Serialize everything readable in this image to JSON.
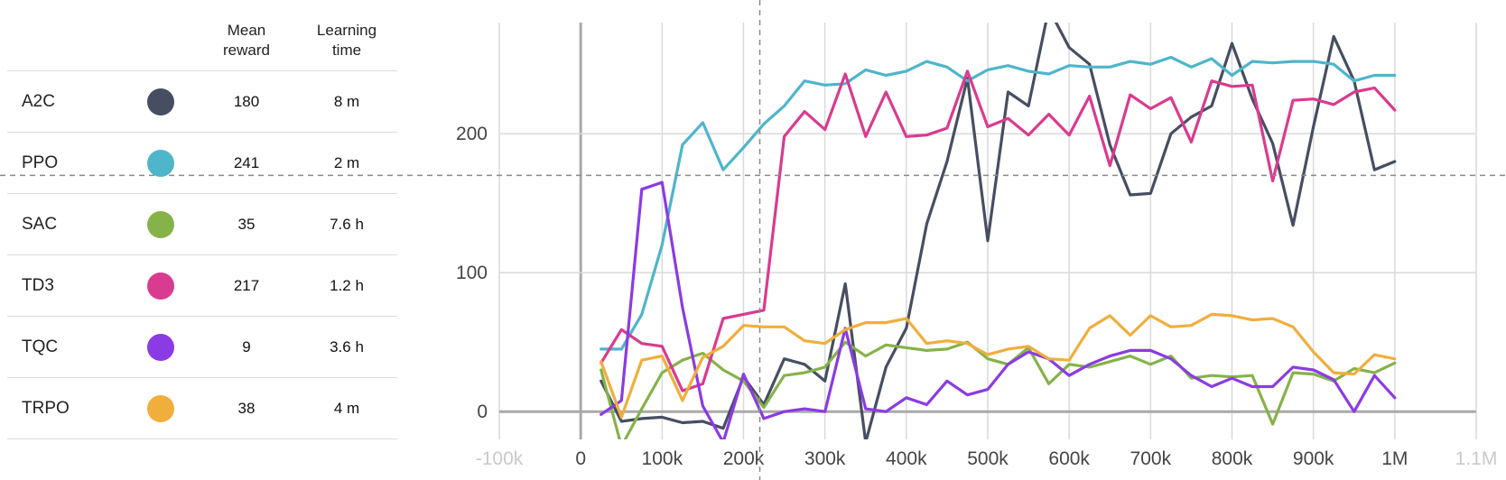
{
  "legend": {
    "headers": {
      "mean_reward": "Mean\nreward",
      "learning_time": "Learning\ntime"
    },
    "rows": [
      {
        "name": "A2C",
        "color": "#464e62",
        "mean_reward": "180",
        "learning_time": "8 m"
      },
      {
        "name": "PPO",
        "color": "#4eb5cb",
        "mean_reward": "241",
        "learning_time": "2 m"
      },
      {
        "name": "SAC",
        "color": "#86b24a",
        "mean_reward": "35",
        "learning_time": "7.6 h"
      },
      {
        "name": "TD3",
        "color": "#d93b8f",
        "mean_reward": "217",
        "learning_time": "1.2 h"
      },
      {
        "name": "TQC",
        "color": "#8b3be3",
        "mean_reward": "9",
        "learning_time": "3.6 h"
      },
      {
        "name": "TRPO",
        "color": "#f0ae3c",
        "mean_reward": "38",
        "learning_time": "4 m"
      }
    ]
  },
  "chart_data": {
    "type": "line",
    "title": "",
    "xlabel": "",
    "ylabel": "",
    "xlim": [
      -100000,
      1100000
    ],
    "ylim": [
      -20,
      280
    ],
    "grid": true,
    "x_ticks": [
      "-100k",
      "0",
      "100k",
      "200k",
      "300k",
      "400k",
      "500k",
      "600k",
      "700k",
      "800k",
      "900k",
      "1M",
      "1.1M"
    ],
    "y_ticks": [
      "0",
      "100",
      "200"
    ],
    "crosshair": {
      "x": 220000,
      "y": 170
    },
    "x": [
      25000,
      50000,
      75000,
      100000,
      125000,
      150000,
      175000,
      200000,
      225000,
      250000,
      275000,
      300000,
      325000,
      350000,
      375000,
      400000,
      425000,
      450000,
      475000,
      500000,
      525000,
      550000,
      575000,
      600000,
      625000,
      650000,
      675000,
      700000,
      725000,
      750000,
      775000,
      800000,
      825000,
      850000,
      875000,
      900000,
      925000,
      950000,
      975000,
      1000000
    ],
    "series": [
      {
        "name": "A2C",
        "values": [
          22,
          -7,
          -5,
          -4,
          -8,
          -7,
          -12,
          25,
          5,
          38,
          34,
          22,
          92,
          -22,
          32,
          60,
          135,
          180,
          240,
          123,
          230,
          220,
          290,
          262,
          250,
          192,
          156,
          157,
          200,
          212,
          220,
          265,
          225,
          193,
          134,
          205,
          270,
          238,
          174,
          180
        ]
      },
      {
        "name": "PPO",
        "values": [
          45,
          45,
          70,
          120,
          192,
          208,
          174,
          190,
          207,
          220,
          238,
          235,
          236,
          246,
          242,
          245,
          252,
          248,
          238,
          246,
          249,
          245,
          243,
          249,
          248,
          248,
          252,
          250,
          255,
          248,
          254,
          242,
          252,
          251,
          252,
          252,
          250,
          238,
          242,
          242
        ]
      },
      {
        "name": "SAC",
        "values": [
          30,
          -25,
          2,
          28,
          37,
          42,
          30,
          22,
          3,
          26,
          28,
          32,
          50,
          40,
          48,
          46,
          44,
          45,
          50,
          38,
          34,
          46,
          20,
          34,
          32,
          36,
          40,
          34,
          40,
          24,
          26,
          25,
          26,
          -9,
          28,
          27,
          22,
          31,
          28,
          35
        ]
      },
      {
        "name": "TD3",
        "values": [
          35,
          59,
          49,
          47,
          15,
          20,
          67,
          70,
          73,
          198,
          216,
          203,
          243,
          198,
          230,
          198,
          199,
          204,
          245,
          205,
          211,
          199,
          214,
          199,
          227,
          177,
          228,
          218,
          226,
          194,
          238,
          234,
          235,
          166,
          224,
          225,
          221,
          230,
          233,
          217
        ]
      },
      {
        "name": "TQC",
        "values": [
          -2,
          8,
          160,
          165,
          75,
          4,
          -22,
          27,
          -5,
          0,
          2,
          0,
          60,
          2,
          0,
          10,
          5,
          22,
          12,
          16,
          34,
          43,
          38,
          26,
          34,
          40,
          44,
          44,
          38,
          26,
          18,
          24,
          18,
          18,
          32,
          30,
          23,
          0,
          26,
          10
        ]
      },
      {
        "name": "TRPO",
        "values": [
          36,
          -4,
          37,
          40,
          8,
          39,
          47,
          62,
          61,
          61,
          51,
          49,
          59,
          64,
          64,
          67,
          49,
          51,
          49,
          41,
          45,
          47,
          38,
          37,
          60,
          69,
          55,
          69,
          61,
          62,
          70,
          69,
          66,
          67,
          61,
          43,
          28,
          27,
          41,
          38
        ]
      }
    ]
  }
}
